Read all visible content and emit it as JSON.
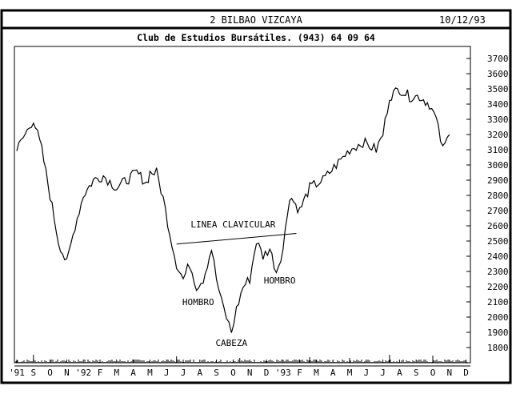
{
  "header": {
    "title": "2 BILBAO VIZCAYA",
    "date": "10/12/93",
    "subtitle": "Club de Estudios Bursátiles. (943) 64 09 64"
  },
  "chart_data": {
    "type": "line",
    "title": "2 BILBAO VIZCAYA",
    "subtitle": "Club de Estudios Bursátiles. (943) 64 09 64",
    "date": "10/12/93",
    "grid": false,
    "ylim": [
      1700,
      3800
    ],
    "y_ticks": [
      1800,
      1900,
      2000,
      2100,
      2200,
      2300,
      2400,
      2500,
      2600,
      2700,
      2800,
      2900,
      3000,
      3100,
      3200,
      3300,
      3400,
      3500,
      3600,
      3700
    ],
    "x_ticks": [
      "'91",
      "S",
      "O",
      "N",
      "'92",
      "F",
      "M",
      "A",
      "M",
      "J",
      "J",
      "A",
      "S",
      "O",
      "N",
      "D",
      "'93",
      "F",
      "M",
      "A",
      "M",
      "J",
      "J",
      "A",
      "S",
      "O",
      "N",
      "D"
    ],
    "series": [
      {
        "values": [
          [
            0,
            3100
          ],
          [
            0.5,
            3200
          ],
          [
            1.0,
            3300
          ],
          [
            1.5,
            3100
          ],
          [
            2.0,
            2800
          ],
          [
            2.5,
            2500
          ],
          [
            3.0,
            2350
          ],
          [
            3.5,
            2600
          ],
          [
            4.0,
            2800
          ],
          [
            4.6,
            2900
          ],
          [
            5.2,
            2930
          ],
          [
            6.0,
            2850
          ],
          [
            6.6,
            2900
          ],
          [
            7.2,
            2950
          ],
          [
            7.8,
            2880
          ],
          [
            8.0,
            2950
          ],
          [
            8.4,
            2950
          ],
          [
            8.8,
            2780
          ],
          [
            9.2,
            2550
          ],
          [
            9.6,
            2350
          ],
          [
            10.0,
            2250
          ],
          [
            10.4,
            2350
          ],
          [
            10.8,
            2200
          ],
          [
            11.2,
            2250
          ],
          [
            11.7,
            2450
          ],
          [
            12.0,
            2250
          ],
          [
            12.3,
            2100
          ],
          [
            12.6,
            2000
          ],
          [
            12.9,
            1900
          ],
          [
            13.2,
            2050
          ],
          [
            13.6,
            2200
          ],
          [
            14.0,
            2250
          ],
          [
            14.4,
            2500
          ],
          [
            14.8,
            2400
          ],
          [
            15.2,
            2450
          ],
          [
            15.6,
            2300
          ],
          [
            16.0,
            2450
          ],
          [
            16.4,
            2800
          ],
          [
            17.0,
            2700
          ],
          [
            17.6,
            2850
          ],
          [
            18.4,
            2900
          ],
          [
            19.2,
            3000
          ],
          [
            20.0,
            3100
          ],
          [
            20.8,
            3150
          ],
          [
            21.6,
            3100
          ],
          [
            22.0,
            3200
          ],
          [
            22.4,
            3450
          ],
          [
            23.0,
            3500
          ],
          [
            23.6,
            3450
          ],
          [
            24.2,
            3450
          ],
          [
            24.8,
            3400
          ],
          [
            25.2,
            3300
          ],
          [
            25.6,
            3100
          ],
          [
            26.0,
            3200
          ]
        ]
      }
    ],
    "volume": {
      "spikes": [
        [
          1.0,
          10
        ],
        [
          9.6,
          8
        ],
        [
          13.4,
          6
        ],
        [
          17.6,
          7
        ],
        [
          20.0,
          6
        ],
        [
          22.4,
          10
        ],
        [
          25.0,
          9
        ]
      ]
    },
    "annotations": [
      {
        "text": "LINEA CLAVICULAR",
        "x": 13.0,
        "y": 2590
      },
      {
        "text": "HOMBRO",
        "x": 10.9,
        "y": 2080
      },
      {
        "text": "CABEZA",
        "x": 12.9,
        "y": 1810
      },
      {
        "text": "HOMBRO",
        "x": 15.8,
        "y": 2220
      }
    ],
    "neckline": [
      [
        9.6,
        2480
      ],
      [
        16.8,
        2550
      ]
    ]
  }
}
